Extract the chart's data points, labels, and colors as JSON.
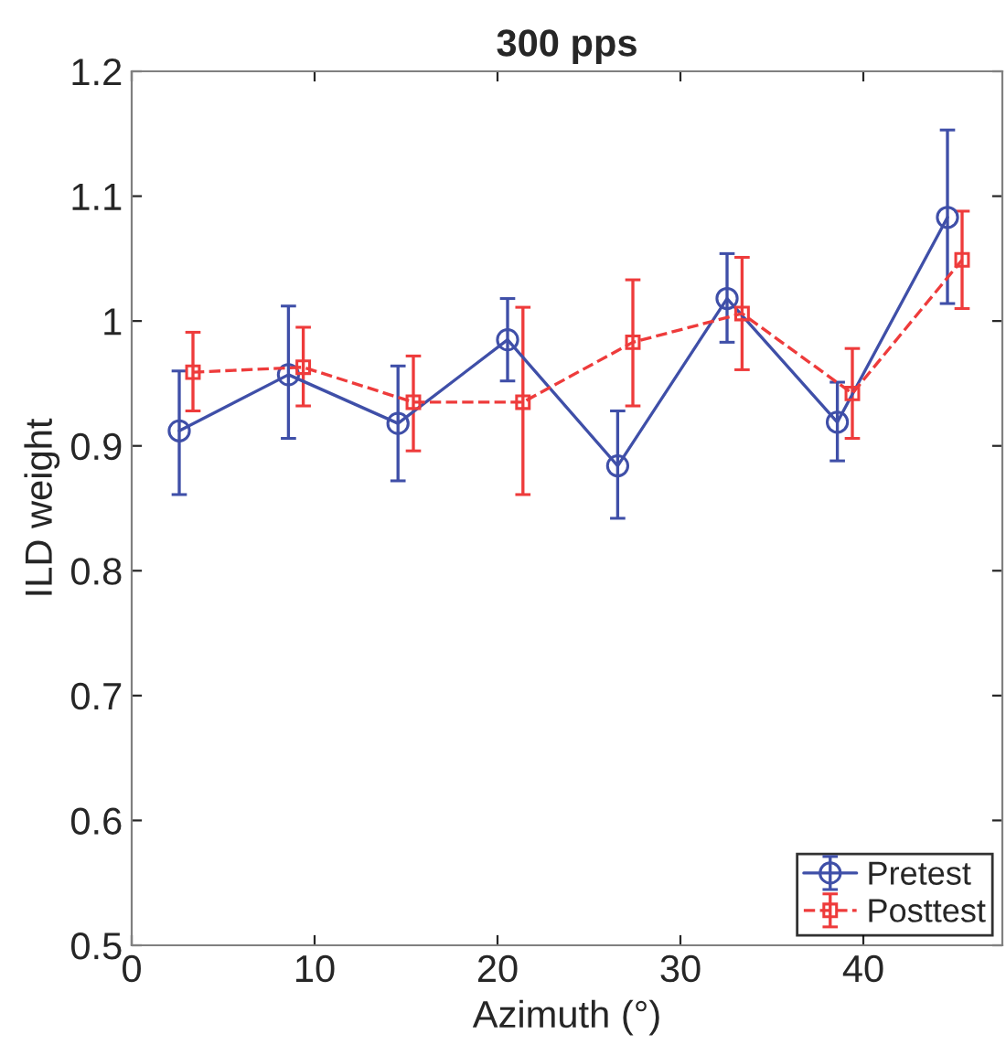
{
  "chart_data": {
    "type": "line",
    "title": "300 pps",
    "xlabel": "Azimuth (°)",
    "ylabel": "ILD weight",
    "xlim": [
      0,
      47.6
    ],
    "xticks": [
      0,
      10,
      20,
      30,
      40
    ],
    "ylim": [
      0.5,
      1.2
    ],
    "yticks": [
      0.5,
      0.6,
      0.7,
      0.8,
      0.9,
      1,
      1.1,
      1.2
    ],
    "grid": false,
    "legend": "bottom right",
    "series": [
      {
        "name": "Pretest",
        "color": "#3f4fa8",
        "marker": "circle",
        "line_style": "solid",
        "x": [
          2.6,
          8.57,
          14.56,
          20.55,
          26.57,
          32.55,
          38.58,
          44.6
        ],
        "values": [
          0.912,
          0.957,
          0.918,
          0.985,
          0.884,
          1.018,
          0.919,
          1.083
        ],
        "errors": [
          [
            0.861,
            0.96
          ],
          [
            0.906,
            1.012
          ],
          [
            0.872,
            0.964
          ],
          [
            0.952,
            1.018
          ],
          [
            0.842,
            0.928
          ],
          [
            0.983,
            1.054
          ],
          [
            0.888,
            0.951
          ],
          [
            1.014,
            1.153
          ]
        ]
      },
      {
        "name": "Posttest",
        "color": "#ee3b3b",
        "marker": "square",
        "line_style": "dashed",
        "x": [
          3.35,
          9.38,
          15.4,
          21.39,
          27.4,
          33.37,
          39.4,
          45.4
        ],
        "values": [
          0.959,
          0.963,
          0.935,
          0.935,
          0.983,
          1.006,
          0.942,
          1.049
        ],
        "errors": [
          [
            0.928,
            0.991
          ],
          [
            0.932,
            0.995
          ],
          [
            0.896,
            0.972
          ],
          [
            0.861,
            1.011
          ],
          [
            0.932,
            1.033
          ],
          [
            0.961,
            1.051
          ],
          [
            0.906,
            0.978
          ],
          [
            1.01,
            1.088
          ]
        ]
      }
    ]
  }
}
